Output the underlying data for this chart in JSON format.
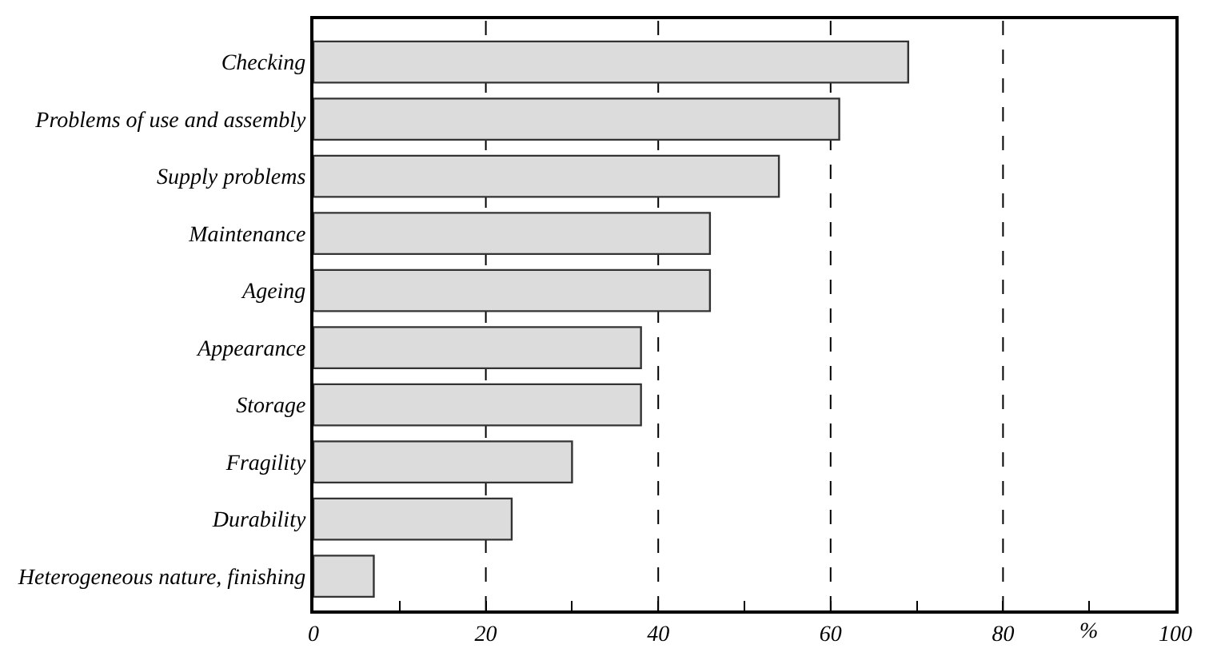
{
  "chart_data": {
    "type": "bar",
    "orientation": "horizontal",
    "xlabel": "%",
    "categories": [
      "Checking",
      "Problems of use and assembly",
      "Supply problems",
      "Maintenance",
      "Ageing",
      "Appearance",
      "Storage",
      "Fragility",
      "Durability",
      "Heterogeneous nature, finishing"
    ],
    "values": [
      69,
      61,
      54,
      46,
      46,
      38,
      38,
      30,
      23,
      7
    ],
    "color": "#dcdcdc",
    "xlim": [
      0,
      100
    ],
    "xticks": [
      0,
      {
        "value": 10,
        "label": null
      },
      20,
      {
        "value": 30,
        "label": null
      },
      40,
      {
        "value": 50,
        "label": null
      },
      60,
      {
        "value": 70,
        "label": null
      },
      80,
      {
        "value": 90,
        "label": null
      },
      100
    ],
    "grid": "x",
    "line_style": "dashed"
  }
}
